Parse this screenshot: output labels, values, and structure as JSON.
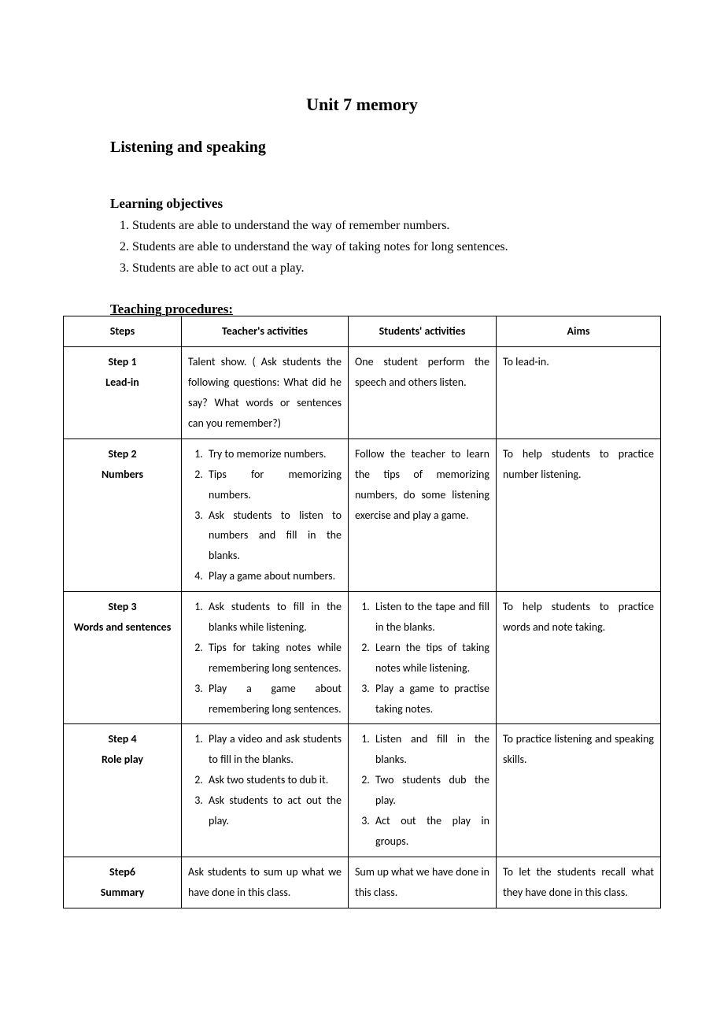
{
  "unit_title": "Unit 7 memory",
  "section_title": "Listening and speaking",
  "objectives_heading": "Learning objectives",
  "objectives": [
    "Students are able to understand the way of remember numbers.",
    "Students are able to understand the way of taking notes for long sentences.",
    "Students are able to act out a play."
  ],
  "procedures_heading": "Teaching procedures:",
  "table": {
    "headers": {
      "steps": "Steps",
      "teacher": "Teacher's activities",
      "students": "Students' activities",
      "aims": "Aims"
    },
    "rows": [
      {
        "step_num": "Step 1",
        "step_name": "Lead-in",
        "teacher_text": "Talent show. ( Ask students the following questions: What did he say? What words or sentences can you remember?)",
        "students_text": "One student perform the speech and others listen.",
        "aims_text": "To lead-in."
      },
      {
        "step_num": "Step 2",
        "step_name": "Numbers",
        "teacher_list": [
          "Try to memorize numbers.",
          "Tips for memorizing numbers.",
          "Ask students to listen to numbers and fill in the blanks.",
          "Play a game about numbers."
        ],
        "students_text": "Follow the teacher to learn the tips of memorizing numbers, do some listening exercise and play a game.",
        "aims_text": "To help students to practice number listening."
      },
      {
        "step_num": "Step 3",
        "step_name": "Words and sentences",
        "teacher_list": [
          "Ask students to fill in the blanks while listening.",
          "Tips for taking notes while remembering long sentences.",
          "Play a game about remembering long sentences."
        ],
        "students_list": [
          "Listen to the tape and fill in the blanks.",
          "Learn the tips of taking notes while listening.",
          "Play a game to practise taking notes."
        ],
        "aims_text": "To help students to practice words and note taking."
      },
      {
        "step_num": "Step 4",
        "step_name": "Role play",
        "teacher_list": [
          "Play a video and ask students to fill in the blanks.",
          "Ask two students to dub it.",
          "Ask students to act out the play."
        ],
        "students_list": [
          "Listen and fill in the blanks.",
          "Two students dub the play.",
          "Act out the play in groups."
        ],
        "aims_text": "To practice listening and speaking skills."
      },
      {
        "step_num": "Step6",
        "step_name": "Summary",
        "teacher_text": "Ask students to sum up what we have done in this class.",
        "students_text": "Sum up what we have done in this class.",
        "aims_text": "To let the students recall what they have done in this class."
      }
    ]
  },
  "colors": {
    "text": "#000000",
    "background": "#ffffff",
    "border": "#000000"
  },
  "fonts": {
    "body_serif": "Times New Roman",
    "table_sans": "Calibri",
    "title_size_pt": 16,
    "section_size_pt": 15,
    "body_size_pt": 12,
    "table_size_pt": 10.5
  }
}
